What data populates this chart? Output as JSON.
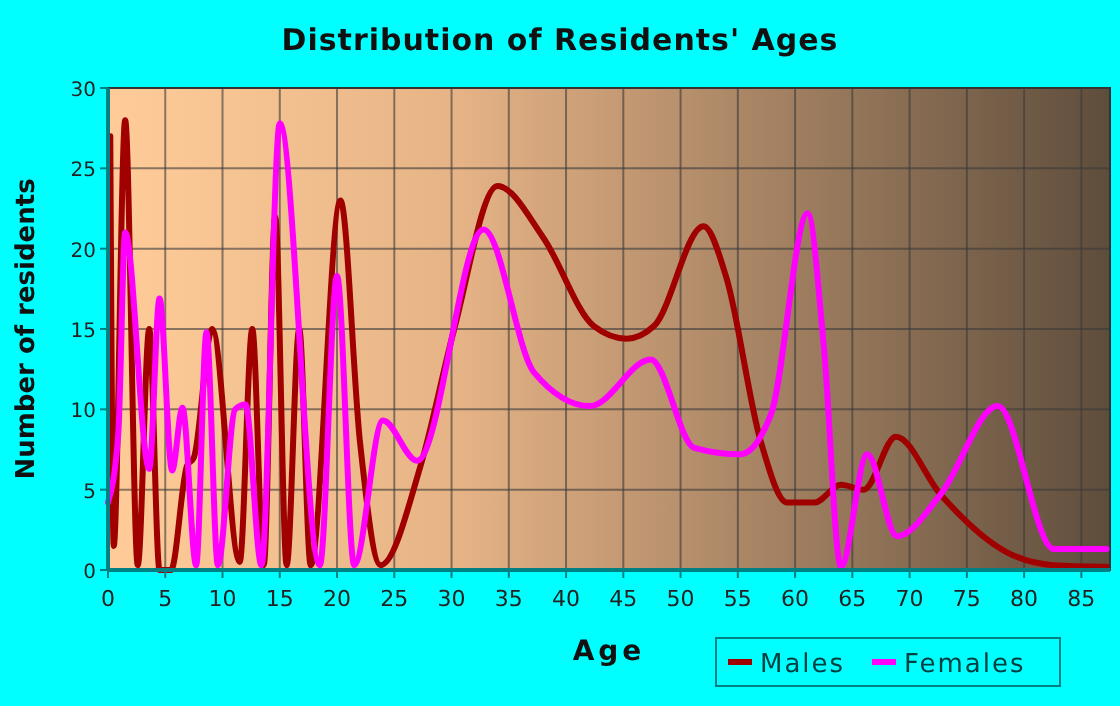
{
  "chart_data": {
    "type": "line",
    "title": "Distribution of Residents' Ages",
    "xlabel": "Age",
    "ylabel": "Number of residents",
    "xlim": [
      0,
      87.5
    ],
    "ylim": [
      0,
      30
    ],
    "xticks": [
      0,
      5,
      10,
      15,
      20,
      25,
      30,
      35,
      40,
      45,
      50,
      55,
      60,
      65,
      70,
      75,
      80,
      85
    ],
    "yticks": [
      0,
      5,
      10,
      15,
      20,
      25,
      30
    ],
    "grid": true,
    "legend": "bottom right",
    "line_style": "solid",
    "marker": "none",
    "series": [
      {
        "name": "Males",
        "color": "#a00000",
        "x": [
          0.2,
          0.5,
          1.5,
          2.6,
          3.6,
          4.5,
          5.5,
          6.9,
          7.5,
          9.1,
          11.5,
          12.6,
          13.6,
          14.6,
          15.6,
          16.7,
          17.7,
          20.3,
          22,
          23.8,
          27.3,
          30.2,
          34,
          38,
          42.4,
          45.3,
          47.7,
          52,
          54,
          57,
          59.3,
          61.7,
          64,
          66,
          68.8,
          72.7,
          78.5,
          82.6,
          87.2
        ],
        "values": [
          27,
          1.5,
          28,
          0.3,
          15,
          0,
          0,
          6.5,
          7,
          15,
          0.5,
          15,
          0.3,
          22,
          0.3,
          15,
          0.3,
          23,
          8,
          0.3,
          6.5,
          14.9,
          23.9,
          20.7,
          15.2,
          14.4,
          15.2,
          21.4,
          18.2,
          8,
          4.2,
          4.2,
          5.3,
          5,
          8.3,
          4.7,
          1.1,
          0.3,
          0.2
        ]
      },
      {
        "name": "Females",
        "color": "#ff00ff",
        "x": [
          0,
          0.9,
          1.5,
          3.6,
          4.5,
          5.6,
          6.5,
          7.7,
          8.6,
          9.6,
          11.1,
          12,
          13.4,
          15,
          18.5,
          20,
          21.5,
          24,
          27,
          32.8,
          37.2,
          42.1,
          47.4,
          51.2,
          55.2,
          57.9,
          61.1,
          62.5,
          64,
          66.3,
          68.9,
          72.7,
          77.7,
          82.6,
          87.2
        ],
        "values": [
          4.2,
          8.5,
          21,
          6.3,
          16.9,
          6.2,
          10.1,
          0.3,
          14.8,
          0.3,
          10,
          10.3,
          0.3,
          27.8,
          0.3,
          18.3,
          0.3,
          9.3,
          6.8,
          21.2,
          12.3,
          10.2,
          13.1,
          7.6,
          7.2,
          9.7,
          22.2,
          14,
          0.2,
          7.2,
          2.1,
          4.7,
          10.2,
          1.3,
          1.3
        ]
      }
    ]
  }
}
